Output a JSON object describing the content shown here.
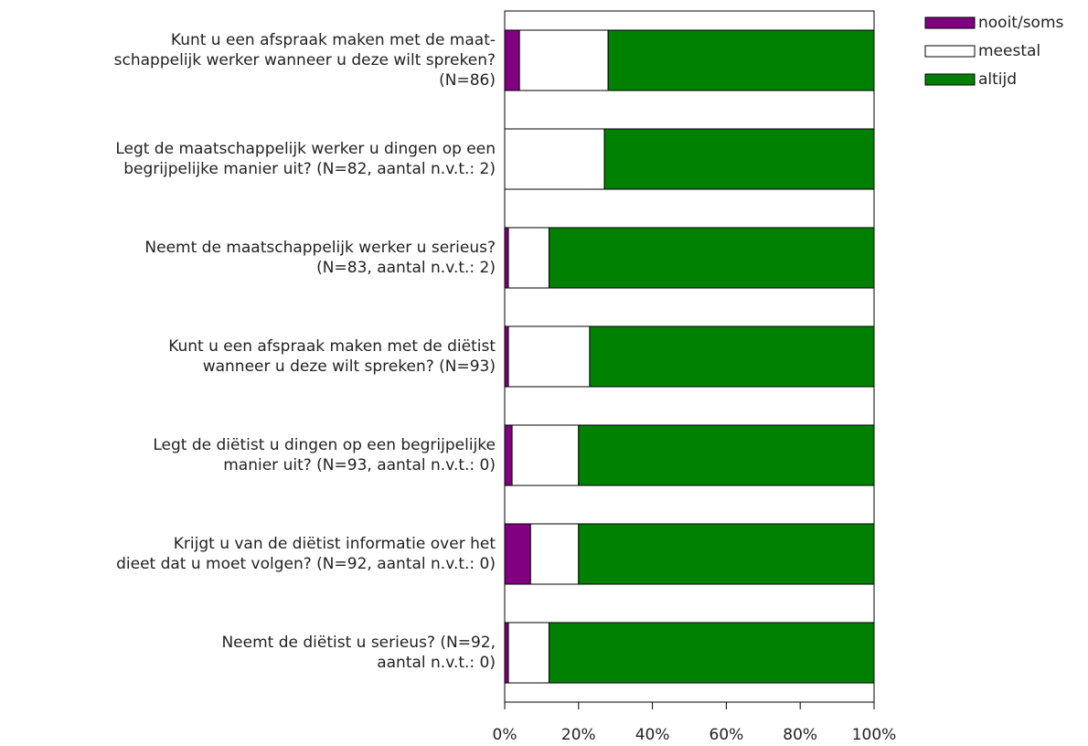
{
  "chart_data": {
    "type": "stacked_barh",
    "categories": [
      [
        "Kunt u een afspraak maken met de maat-",
        "schappelijk werker wanneer u deze wilt spreken?",
        "(N=86)"
      ],
      [
        "Legt de maatschappelijk werker u dingen op een",
        "begrijpelijke manier uit? (N=82, aantal n.v.t.: 2)"
      ],
      [
        "Neemt de maatschappelijk werker u serieus?",
        "(N=83, aantal n.v.t.: 2)"
      ],
      [
        "Kunt u een afspraak maken met de diëtist",
        "wanneer u deze wilt spreken? (N=93)"
      ],
      [
        "Legt de diëtist u dingen op een begrijpelijke",
        "manier uit? (N=93, aantal n.v.t.: 0)"
      ],
      [
        "Krijgt u van de diëtist informatie over het",
        "dieet dat u moet volgen? (N=92, aantal n.v.t.: 0)"
      ],
      [
        "Neemt de diëtist u serieus? (N=92,",
        "aantal n.v.t.: 0)"
      ]
    ],
    "series": [
      {
        "name": "nooit/soms",
        "color": "#800080",
        "values": [
          4,
          0,
          1,
          1,
          2,
          7,
          1
        ]
      },
      {
        "name": "meestal",
        "color": "#ffffff",
        "values": [
          24,
          27,
          11,
          22,
          18,
          13,
          11
        ]
      },
      {
        "name": "altijd",
        "color": "#008000",
        "values": [
          72,
          73,
          88,
          77,
          80,
          80,
          88
        ]
      }
    ],
    "xlim": [
      0,
      100
    ],
    "xticks": [
      {
        "value": 0,
        "label": "0%"
      },
      {
        "value": 20,
        "label": "20%"
      },
      {
        "value": 40,
        "label": "40%"
      },
      {
        "value": 60,
        "label": "60%"
      },
      {
        "value": 80,
        "label": "80%"
      },
      {
        "value": 100,
        "label": "100%"
      }
    ],
    "legend": "upper right"
  }
}
